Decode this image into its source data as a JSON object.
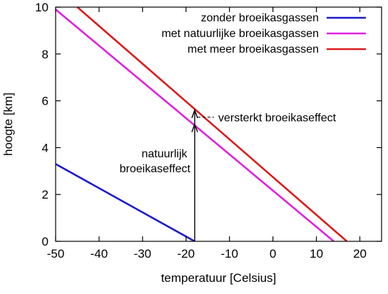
{
  "chart_data": {
    "type": "line",
    "xlabel": "temperatuur [Celsius]",
    "ylabel": "hoogte [km]",
    "xlim": [
      -50,
      25
    ],
    "ylim": [
      0,
      10
    ],
    "x_ticks": [
      -50,
      -40,
      -30,
      -20,
      -10,
      0,
      10,
      20
    ],
    "y_ticks": [
      0,
      2,
      4,
      6,
      8,
      10
    ],
    "grid": false,
    "legend_position": "top-right",
    "series": [
      {
        "name": "zonder broeikasgassen",
        "color": "#1a1acc",
        "x": [
          -50,
          -18
        ],
        "y": [
          3.3,
          0
        ]
      },
      {
        "name": "met natuurlijke broeikasgassen",
        "color": "#e020e0",
        "x": [
          -50,
          14
        ],
        "y": [
          9.9,
          0
        ]
      },
      {
        "name": "met meer broeikasgassen",
        "color": "#dd1a1a",
        "x": [
          -45,
          17
        ],
        "y": [
          10,
          0
        ]
      }
    ],
    "arrows": [
      {
        "x": -18,
        "from_y": 0,
        "to_y": 5.0
      },
      {
        "x": -18,
        "from_y": 5.0,
        "to_y": 5.6
      }
    ],
    "annotations": [
      {
        "lines": [
          "natuurlijk",
          "broeikaseffect"
        ]
      },
      {
        "lines": [
          "versterkt broeikaseffect"
        ]
      }
    ]
  }
}
